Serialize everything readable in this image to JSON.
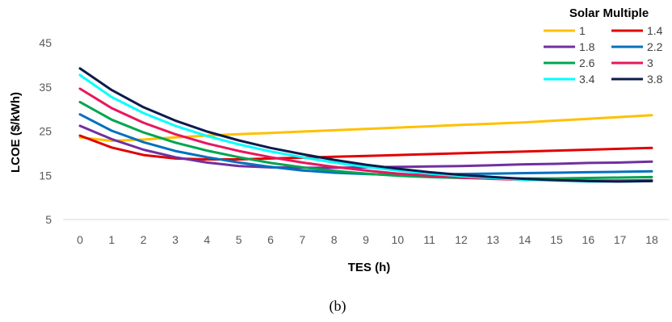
{
  "chart_data": {
    "type": "line",
    "title": "",
    "xlabel": "TES (h)",
    "ylabel": "LCOE ($/kWh)",
    "caption": "(b)",
    "legend_title": "Solar Multiple",
    "legend_position": "top-right",
    "grid": false,
    "xlim": [
      0,
      18
    ],
    "ylim": [
      5,
      45
    ],
    "x": [
      0,
      1,
      2,
      3,
      4,
      5,
      6,
      7,
      8,
      9,
      10,
      11,
      12,
      13,
      14,
      15,
      16,
      17,
      18
    ],
    "x_ticks": [
      "0",
      "1",
      "2",
      "3",
      "4",
      "5",
      "6",
      "7",
      "8",
      "9",
      "10",
      "11",
      "12",
      "13",
      "14",
      "15",
      "16",
      "17",
      "18"
    ],
    "y_ticks": [
      "5",
      "15",
      "25",
      "35",
      "45"
    ],
    "series": [
      {
        "name": "1",
        "color": "#FFC000",
        "values": [
          23.6,
          22.8,
          23.1,
          23.6,
          24.0,
          24.3,
          24.6,
          24.9,
          25.2,
          25.5,
          25.8,
          26.1,
          26.4,
          26.7,
          27.0,
          27.4,
          27.8,
          28.2,
          28.6
        ]
      },
      {
        "name": "1.4",
        "color": "#E00000",
        "values": [
          24.0,
          21.3,
          19.6,
          18.8,
          18.6,
          18.6,
          18.8,
          19.0,
          19.2,
          19.4,
          19.6,
          19.8,
          20.0,
          20.2,
          20.4,
          20.6,
          20.8,
          21.0,
          21.2
        ]
      },
      {
        "name": "1.8",
        "color": "#7030A0",
        "values": [
          26.2,
          23.2,
          20.8,
          19.1,
          17.9,
          17.1,
          16.8,
          16.7,
          16.7,
          16.8,
          16.9,
          17.0,
          17.1,
          17.3,
          17.5,
          17.6,
          17.8,
          17.9,
          18.1
        ]
      },
      {
        "name": "2.2",
        "color": "#0070C0",
        "values": [
          28.8,
          25.1,
          22.5,
          20.5,
          19.1,
          17.9,
          16.9,
          16.1,
          15.6,
          15.3,
          15.1,
          15.2,
          15.3,
          15.4,
          15.5,
          15.6,
          15.7,
          15.8,
          15.9
        ]
      },
      {
        "name": "2.6",
        "color": "#00A550",
        "values": [
          31.6,
          27.6,
          24.7,
          22.4,
          20.6,
          19.1,
          17.8,
          16.8,
          16.0,
          15.4,
          14.9,
          14.6,
          14.4,
          14.3,
          14.3,
          14.3,
          14.4,
          14.5,
          14.6
        ]
      },
      {
        "name": "3",
        "color": "#E8175D",
        "values": [
          34.6,
          30.2,
          26.9,
          24.3,
          22.2,
          20.5,
          19.1,
          17.9,
          16.9,
          16.1,
          15.4,
          14.9,
          14.5,
          14.2,
          14.0,
          13.9,
          13.8,
          13.8,
          13.9
        ]
      },
      {
        "name": "3.4",
        "color": "#00FFFF",
        "values": [
          37.7,
          32.7,
          29.1,
          26.2,
          23.9,
          22.0,
          20.4,
          19.1,
          17.9,
          16.9,
          16.1,
          15.4,
          14.8,
          14.4,
          14.0,
          13.8,
          13.6,
          13.6,
          13.7
        ]
      },
      {
        "name": "3.8",
        "color": "#0D1B4B",
        "values": [
          39.2,
          34.3,
          30.4,
          27.4,
          24.9,
          22.9,
          21.2,
          19.8,
          18.5,
          17.4,
          16.5,
          15.7,
          15.1,
          14.6,
          14.2,
          13.9,
          13.7,
          13.6,
          13.7
        ]
      }
    ]
  }
}
